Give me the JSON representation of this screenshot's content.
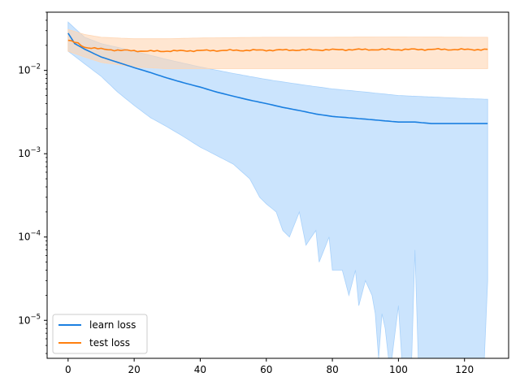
{
  "chart_data": {
    "type": "line",
    "title": "",
    "xlabel": "",
    "ylabel": "",
    "yscale": "log",
    "xlim": [
      -6.35,
      133.35
    ],
    "ylim": [
      3.5e-06,
      0.05
    ],
    "x_ticks": [
      0,
      20,
      40,
      60,
      80,
      100,
      120
    ],
    "y_ticks": [
      {
        "value": 1e-05,
        "base": "10",
        "exp": "−5"
      },
      {
        "value": 0.0001,
        "base": "10",
        "exp": "−4"
      },
      {
        "value": 0.001,
        "base": "10",
        "exp": "−3"
      },
      {
        "value": 0.01,
        "base": "10",
        "exp": "−2"
      }
    ],
    "legend_position": "lower-left",
    "x_max": 127,
    "series": [
      {
        "name": "learn loss",
        "color": "#1f77b4",
        "line_color": "#1a7fe0",
        "band_color": "#a9d2fb",
        "mean_points": [
          [
            0,
            0.028
          ],
          [
            2,
            0.021
          ],
          [
            5,
            0.018
          ],
          [
            10,
            0.0145
          ],
          [
            15,
            0.0125
          ],
          [
            20,
            0.0108
          ],
          [
            25,
            0.0094
          ],
          [
            30,
            0.0081
          ],
          [
            35,
            0.0071
          ],
          [
            40,
            0.0063
          ],
          [
            45,
            0.0055
          ],
          [
            50,
            0.0049
          ],
          [
            55,
            0.0044
          ],
          [
            60,
            0.004
          ],
          [
            65,
            0.0036
          ],
          [
            70,
            0.0033
          ],
          [
            75,
            0.003
          ],
          [
            80,
            0.0028
          ],
          [
            85,
            0.0027
          ],
          [
            90,
            0.0026
          ],
          [
            95,
            0.0025
          ],
          [
            100,
            0.0024
          ],
          [
            105,
            0.0024
          ],
          [
            110,
            0.0023
          ],
          [
            115,
            0.0023
          ],
          [
            120,
            0.0023
          ],
          [
            127,
            0.0023
          ]
        ],
        "upper_points": [
          [
            0,
            0.038
          ],
          [
            5,
            0.025
          ],
          [
            10,
            0.021
          ],
          [
            20,
            0.017
          ],
          [
            30,
            0.0135
          ],
          [
            40,
            0.011
          ],
          [
            50,
            0.0092
          ],
          [
            60,
            0.0078
          ],
          [
            70,
            0.0068
          ],
          [
            80,
            0.006
          ],
          [
            90,
            0.0055
          ],
          [
            100,
            0.005
          ],
          [
            110,
            0.0048
          ],
          [
            120,
            0.0046
          ],
          [
            127,
            0.0045
          ]
        ],
        "lower_points": [
          [
            0,
            0.017
          ],
          [
            5,
            0.012
          ],
          [
            10,
            0.0085
          ],
          [
            15,
            0.0055
          ],
          [
            20,
            0.0038
          ],
          [
            25,
            0.0027
          ],
          [
            30,
            0.0021
          ],
          [
            35,
            0.0016
          ],
          [
            40,
            0.0012
          ],
          [
            45,
            0.00095
          ],
          [
            50,
            0.00075
          ],
          [
            55,
            0.0005
          ],
          [
            58,
            0.0003
          ],
          [
            60,
            0.00025
          ],
          [
            63,
            0.0002
          ],
          [
            65,
            0.00012
          ],
          [
            67,
            0.0001
          ],
          [
            70,
            0.0002
          ],
          [
            72,
            8e-05
          ],
          [
            75,
            0.00012
          ],
          [
            76,
            5e-05
          ],
          [
            79,
            0.0001
          ],
          [
            80,
            4e-05
          ],
          [
            83,
            4e-05
          ],
          [
            85,
            2e-05
          ],
          [
            87,
            4e-05
          ],
          [
            88,
            1.5e-05
          ],
          [
            90,
            3e-05
          ],
          [
            92,
            2e-05
          ],
          [
            93,
            1.2e-05
          ],
          [
            94,
            3.5e-06
          ],
          [
            95,
            1.2e-05
          ],
          [
            96,
            8e-06
          ],
          [
            97,
            3.5e-06
          ],
          [
            98,
            3.5e-06
          ],
          [
            100,
            1.5e-05
          ],
          [
            101,
            3.5e-06
          ],
          [
            104,
            3.5e-06
          ],
          [
            105,
            7e-05
          ],
          [
            106,
            3.5e-06
          ],
          [
            126,
            3.5e-06
          ],
          [
            127,
            3e-05
          ]
        ]
      },
      {
        "name": "test loss",
        "color": "#ff7f0e",
        "line_color": "#ff7f0e",
        "band_color": "#ffd6b3",
        "mean_points": [
          [
            0,
            0.023
          ],
          [
            3,
            0.021
          ],
          [
            5,
            0.019
          ],
          [
            8,
            0.0185
          ],
          [
            10,
            0.018
          ],
          [
            15,
            0.0175
          ],
          [
            20,
            0.0172
          ],
          [
            25,
            0.017
          ],
          [
            30,
            0.0171
          ],
          [
            35,
            0.0172
          ],
          [
            40,
            0.0173
          ],
          [
            50,
            0.0174
          ],
          [
            60,
            0.0175
          ],
          [
            70,
            0.0176
          ],
          [
            80,
            0.0177
          ],
          [
            90,
            0.0178
          ],
          [
            100,
            0.0178
          ],
          [
            110,
            0.0179
          ],
          [
            120,
            0.0178
          ],
          [
            127,
            0.0178
          ]
        ],
        "upper_points": [
          [
            0,
            0.031
          ],
          [
            5,
            0.027
          ],
          [
            10,
            0.025
          ],
          [
            20,
            0.024
          ],
          [
            30,
            0.024
          ],
          [
            40,
            0.0245
          ],
          [
            60,
            0.025
          ],
          [
            80,
            0.025
          ],
          [
            100,
            0.0252
          ],
          [
            120,
            0.025
          ],
          [
            127,
            0.025
          ]
        ],
        "lower_points": [
          [
            0,
            0.017
          ],
          [
            5,
            0.0145
          ],
          [
            10,
            0.0125
          ],
          [
            20,
            0.011
          ],
          [
            30,
            0.0105
          ],
          [
            40,
            0.0105
          ],
          [
            60,
            0.0105
          ],
          [
            80,
            0.0105
          ],
          [
            100,
            0.0105
          ],
          [
            120,
            0.0105
          ],
          [
            127,
            0.0105
          ]
        ]
      }
    ]
  }
}
